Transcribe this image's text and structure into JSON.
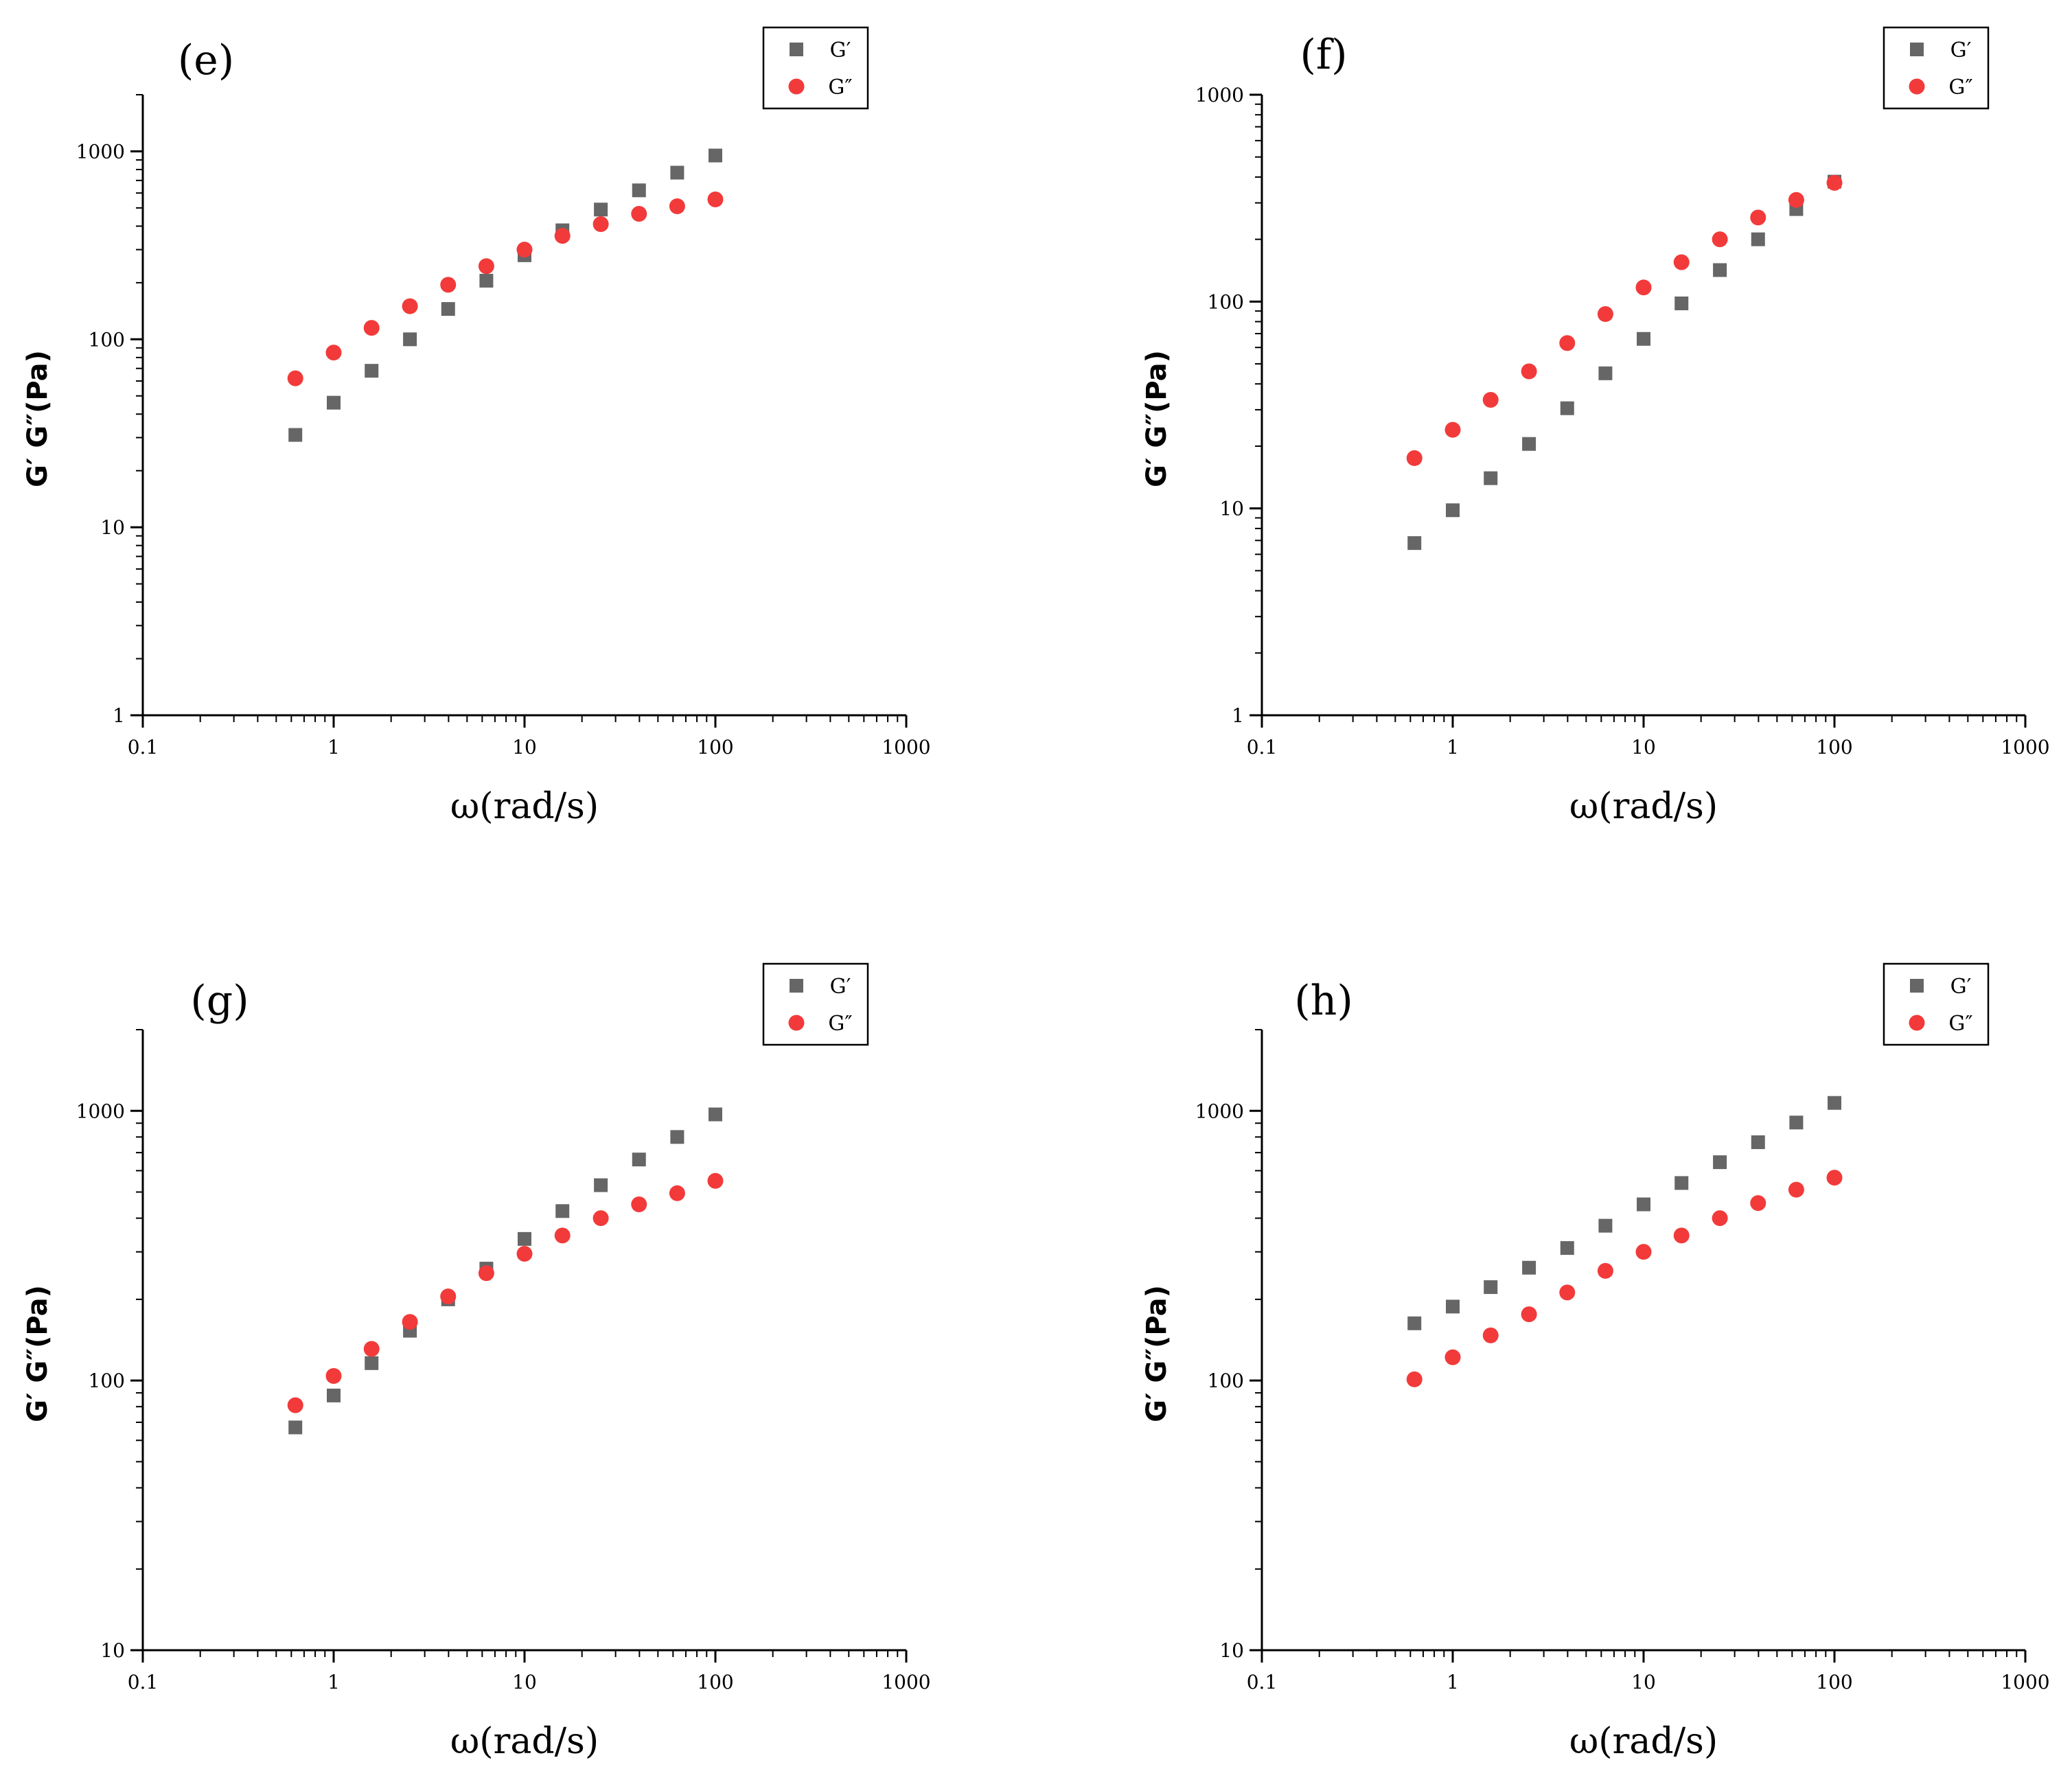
{
  "chart_data": [
    {
      "type": "scatter",
      "panel_label": "(e)",
      "xlabel": "ω(rad/s)",
      "ylabel": "G′ G″(Pa)",
      "xscale": "log",
      "yscale": "log",
      "xlim": [
        0.1,
        1000
      ],
      "ylim": [
        1,
        2000
      ],
      "xticks": [
        0.1,
        1,
        10,
        100,
        1000
      ],
      "xtick_labels": [
        "0.1",
        "1",
        "10",
        "100",
        "1000"
      ],
      "yticks": [
        1,
        10,
        100,
        1000
      ],
      "ytick_labels": [
        "1",
        "10",
        "100",
        "1000"
      ],
      "legend_position": "top-right",
      "x": [
        0.63,
        1,
        1.58,
        2.51,
        3.98,
        6.31,
        10,
        15.8,
        25.1,
        39.8,
        63.1,
        100
      ],
      "series": [
        {
          "name": "G′",
          "marker": "square",
          "color": "#666666",
          "values": [
            31,
            46,
            68,
            100,
            145,
            205,
            280,
            380,
            490,
            620,
            770,
            950
          ]
        },
        {
          "name": "G″",
          "marker": "circle",
          "color": "#f23a3a",
          "values": [
            62,
            85,
            115,
            150,
            195,
            245,
            300,
            355,
            410,
            465,
            510,
            555
          ]
        }
      ]
    },
    {
      "type": "scatter",
      "panel_label": "(f)",
      "xlabel": "ω(rad/s)",
      "ylabel": "G′ G″(Pa)",
      "xscale": "log",
      "yscale": "log",
      "xlim": [
        0.1,
        1000
      ],
      "ylim": [
        1,
        1000
      ],
      "xticks": [
        0.1,
        1,
        10,
        100,
        1000
      ],
      "xtick_labels": [
        "0.1",
        "1",
        "10",
        "100",
        "1000"
      ],
      "yticks": [
        1,
        10,
        100,
        1000
      ],
      "ytick_labels": [
        "1",
        "10",
        "100",
        "1000"
      ],
      "legend_position": "top-right",
      "x": [
        0.63,
        1,
        1.58,
        2.51,
        3.98,
        6.31,
        10,
        15.8,
        25.1,
        39.8,
        63.1,
        100
      ],
      "series": [
        {
          "name": "G′",
          "marker": "square",
          "color": "#666666",
          "values": [
            6.8,
            9.8,
            14,
            20.5,
            30.5,
            45,
            66,
            98,
            142,
            200,
            280,
            380
          ]
        },
        {
          "name": "G″",
          "marker": "circle",
          "color": "#f23a3a",
          "values": [
            17.5,
            24,
            33.5,
            46,
            63,
            87,
            117,
            155,
            200,
            255,
            310,
            375
          ]
        }
      ]
    },
    {
      "type": "scatter",
      "panel_label": "(g)",
      "xlabel": "ω(rad/s)",
      "ylabel": "G′ G″(Pa)",
      "xscale": "log",
      "yscale": "log",
      "xlim": [
        0.1,
        1000
      ],
      "ylim": [
        10,
        2000
      ],
      "xticks": [
        0.1,
        1,
        10,
        100,
        1000
      ],
      "xtick_labels": [
        "0.1",
        "1",
        "10",
        "100",
        "1000"
      ],
      "yticks": [
        10,
        100,
        1000
      ],
      "ytick_labels": [
        "10",
        "100",
        "1000"
      ],
      "legend_position": "top-right",
      "x": [
        0.63,
        1,
        1.58,
        2.51,
        3.98,
        6.31,
        10,
        15.8,
        25.1,
        39.8,
        63.1,
        100
      ],
      "series": [
        {
          "name": "G′",
          "marker": "square",
          "color": "#666666",
          "values": [
            67,
            88,
            116,
            153,
            200,
            260,
            335,
            425,
            530,
            660,
            800,
            970
          ]
        },
        {
          "name": "G″",
          "marker": "circle",
          "color": "#f23a3a",
          "values": [
            81,
            104,
            131,
            165,
            205,
            250,
            295,
            345,
            400,
            450,
            495,
            550
          ]
        }
      ]
    },
    {
      "type": "scatter",
      "panel_label": "(h)",
      "xlabel": "ω(rad/s)",
      "ylabel": "G′ G″(Pa)",
      "xscale": "log",
      "yscale": "log",
      "xlim": [
        0.1,
        1000
      ],
      "ylim": [
        10,
        2000
      ],
      "xticks": [
        0.1,
        1,
        10,
        100,
        1000
      ],
      "xtick_labels": [
        "0.1",
        "1",
        "10",
        "100",
        "1000"
      ],
      "yticks": [
        10,
        100,
        1000
      ],
      "ytick_labels": [
        "10",
        "100",
        "1000"
      ],
      "legend_position": "top-right",
      "x": [
        0.63,
        1,
        1.58,
        2.51,
        3.98,
        6.31,
        10,
        15.8,
        25.1,
        39.8,
        63.1,
        100
      ],
      "series": [
        {
          "name": "G′",
          "marker": "square",
          "color": "#666666",
          "values": [
            163,
            188,
            222,
            262,
            310,
            375,
            450,
            540,
            645,
            765,
            905,
            1070
          ]
        },
        {
          "name": "G″",
          "marker": "circle",
          "color": "#f23a3a",
          "values": [
            101,
            122,
            147,
            176,
            212,
            255,
            300,
            345,
            400,
            455,
            510,
            565
          ]
        }
      ]
    }
  ]
}
